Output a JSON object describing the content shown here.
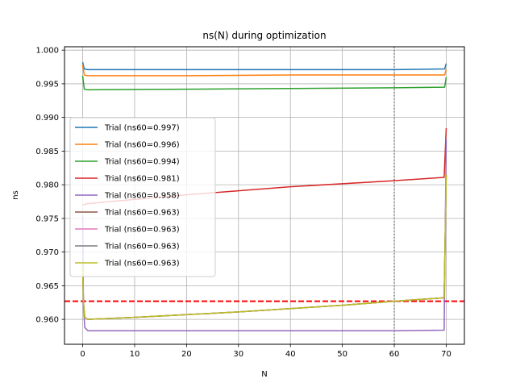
{
  "chart_data": {
    "type": "line",
    "title": "ns(N) during optimization",
    "xlabel": "N",
    "ylabel": "ns",
    "xlim": [
      -3.5,
      73.5
    ],
    "ylim": [
      0.9563,
      1.0005
    ],
    "xticks": [
      0,
      10,
      20,
      30,
      40,
      50,
      60,
      70
    ],
    "yticks": [
      0.96,
      0.965,
      0.97,
      0.975,
      0.98,
      0.985,
      0.99,
      0.995,
      1.0
    ],
    "ytick_labels": [
      "0.960",
      "0.965",
      "0.970",
      "0.975",
      "0.980",
      "0.985",
      "0.990",
      "0.995",
      "1.000"
    ],
    "grid": true,
    "legend_position": "center-left",
    "vline": {
      "x": 60,
      "color": "#808080",
      "style": "dotted"
    },
    "hline": {
      "y": 0.9627,
      "color": "#ff0000",
      "style": "dashed"
    },
    "series": [
      {
        "name": "Trial (ns60=0.997)",
        "color": "#1f77b4",
        "points": [
          [
            0,
            0.9982
          ],
          [
            0.3,
            0.9972
          ],
          [
            1,
            0.9971
          ],
          [
            10,
            0.9971
          ],
          [
            30,
            0.9971
          ],
          [
            60,
            0.9971
          ],
          [
            69.7,
            0.9972
          ],
          [
            70,
            0.998
          ]
        ]
      },
      {
        "name": "Trial (ns60=0.996)",
        "color": "#ff7f0e",
        "points": [
          [
            0,
            0.9978
          ],
          [
            0.3,
            0.9963
          ],
          [
            1,
            0.9962
          ],
          [
            20,
            0.9962
          ],
          [
            40,
            0.9963
          ],
          [
            60,
            0.9963
          ],
          [
            69.7,
            0.9963
          ],
          [
            70,
            0.9972
          ]
        ]
      },
      {
        "name": "Trial (ns60=0.994)",
        "color": "#2ca02c",
        "points": [
          [
            0,
            0.9962
          ],
          [
            0.3,
            0.9942
          ],
          [
            1,
            0.9941
          ],
          [
            20,
            0.9942
          ],
          [
            40,
            0.9943
          ],
          [
            60,
            0.9944
          ],
          [
            69.7,
            0.9945
          ],
          [
            70,
            0.996
          ]
        ]
      },
      {
        "name": "Trial (ns60=0.981)",
        "color": "#d62728",
        "points": [
          [
            0,
            0.977
          ],
          [
            1,
            0.9772
          ],
          [
            20,
            0.9785
          ],
          [
            40,
            0.9797
          ],
          [
            60,
            0.9806
          ],
          [
            69.6,
            0.9811
          ],
          [
            70,
            0.9884
          ]
        ]
      },
      {
        "name": "Trial (ns60=0.958)",
        "color": "#9467bd",
        "points": [
          [
            0,
            0.9755
          ],
          [
            0.15,
            0.962
          ],
          [
            0.4,
            0.9588
          ],
          [
            1,
            0.9583
          ],
          [
            20,
            0.9583
          ],
          [
            60,
            0.9583
          ],
          [
            69.6,
            0.9584
          ],
          [
            70,
            0.9867
          ]
        ]
      },
      {
        "name": "Trial (ns60=0.963)",
        "color": "#8c564b",
        "points": [
          [
            0,
            0.968
          ],
          [
            0.15,
            0.9625
          ],
          [
            0.4,
            0.9603
          ],
          [
            1,
            0.96
          ],
          [
            10,
            0.9603
          ],
          [
            20,
            0.9607
          ],
          [
            30,
            0.9611
          ],
          [
            40,
            0.9616
          ],
          [
            50,
            0.9621
          ],
          [
            60,
            0.9627
          ],
          [
            69.6,
            0.9632
          ],
          [
            70,
            0.9815
          ]
        ]
      },
      {
        "name": "Trial (ns60=0.963)",
        "color": "#e377c2",
        "points": [
          [
            0,
            0.968
          ],
          [
            0.15,
            0.9625
          ],
          [
            0.4,
            0.9603
          ],
          [
            1,
            0.96
          ],
          [
            10,
            0.9603
          ],
          [
            20,
            0.9607
          ],
          [
            30,
            0.9611
          ],
          [
            40,
            0.9616
          ],
          [
            50,
            0.9621
          ],
          [
            60,
            0.9627
          ],
          [
            69.6,
            0.9632
          ],
          [
            70,
            0.9815
          ]
        ]
      },
      {
        "name": "Trial (ns60=0.963)",
        "color": "#7f7f7f",
        "points": [
          [
            0,
            0.968
          ],
          [
            0.15,
            0.9625
          ],
          [
            0.4,
            0.9603
          ],
          [
            1,
            0.96
          ],
          [
            10,
            0.9603
          ],
          [
            20,
            0.9607
          ],
          [
            30,
            0.9611
          ],
          [
            40,
            0.9616
          ],
          [
            50,
            0.9621
          ],
          [
            60,
            0.9627
          ],
          [
            69.6,
            0.9632
          ],
          [
            70,
            0.9815
          ]
        ]
      },
      {
        "name": "Trial (ns60=0.963)",
        "color": "#bcbd22",
        "points": [
          [
            0,
            0.968
          ],
          [
            0.15,
            0.9625
          ],
          [
            0.4,
            0.9603
          ],
          [
            1,
            0.96
          ],
          [
            10,
            0.9603
          ],
          [
            20,
            0.9607
          ],
          [
            30,
            0.9611
          ],
          [
            40,
            0.9616
          ],
          [
            50,
            0.9621
          ],
          [
            60,
            0.9627
          ],
          [
            69.6,
            0.9632
          ],
          [
            70,
            0.9815
          ]
        ]
      }
    ]
  }
}
